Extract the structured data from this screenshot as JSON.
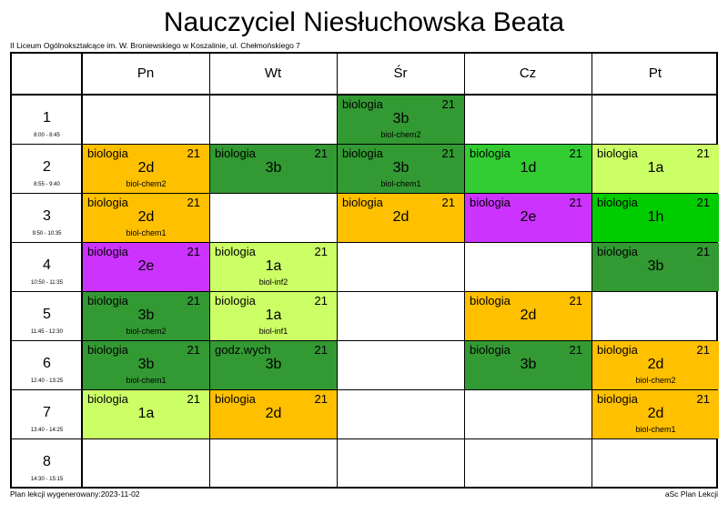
{
  "title": "Nauczyciel Niesłuchowska Beata",
  "school": "II Liceum Ogólnokształcące im. W. Broniewskiego w Koszalinie, ul. Chełmońskiego 7",
  "footer_left": "Plan lekcji wygenerowany:2023-11-02",
  "footer_right": "aSc Plan Lekcji",
  "days": [
    "Pn",
    "Wt",
    "Śr",
    "Cz",
    "Pt"
  ],
  "periods": [
    {
      "num": "1",
      "time": "8:00 - 8:45"
    },
    {
      "num": "2",
      "time": "8:55 - 9:40"
    },
    {
      "num": "3",
      "time": "9:50 - 10:35"
    },
    {
      "num": "4",
      "time": "10:50 - 11:35"
    },
    {
      "num": "5",
      "time": "11:45 - 12:30"
    },
    {
      "num": "6",
      "time": "12:40 - 13:25"
    },
    {
      "num": "7",
      "time": "13:40 - 14:25"
    },
    {
      "num": "8",
      "time": "14:30 - 15:15"
    }
  ],
  "colors": {
    "orange": "#ffc000",
    "dark_green": "#339933",
    "light_green": "#ccff66",
    "medium_green": "#33cc33",
    "bright_green": "#00cc00",
    "purple": "#cc33ff"
  },
  "lessons": [
    {
      "day": 2,
      "period": 0,
      "subject": "biologia",
      "room": "21",
      "class": "3b",
      "group": "biol-chem2",
      "color": "dark_green"
    },
    {
      "day": 0,
      "period": 1,
      "subject": "biologia",
      "room": "21",
      "class": "2d",
      "group": "biol-chem2",
      "color": "orange"
    },
    {
      "day": 1,
      "period": 1,
      "subject": "biologia",
      "room": "21",
      "class": "3b",
      "group": "",
      "color": "dark_green"
    },
    {
      "day": 2,
      "period": 1,
      "subject": "biologia",
      "room": "21",
      "class": "3b",
      "group": "biol-chem1",
      "color": "dark_green"
    },
    {
      "day": 3,
      "period": 1,
      "subject": "biologia",
      "room": "21",
      "class": "1d",
      "group": "",
      "color": "medium_green"
    },
    {
      "day": 4,
      "period": 1,
      "subject": "biologia",
      "room": "21",
      "class": "1a",
      "group": "",
      "color": "light_green"
    },
    {
      "day": 0,
      "period": 2,
      "subject": "biologia",
      "room": "21",
      "class": "2d",
      "group": "biol-chem1",
      "color": "orange"
    },
    {
      "day": 2,
      "period": 2,
      "subject": "biologia",
      "room": "21",
      "class": "2d",
      "group": "",
      "color": "orange"
    },
    {
      "day": 3,
      "period": 2,
      "subject": "biologia",
      "room": "21",
      "class": "2e",
      "group": "",
      "color": "purple"
    },
    {
      "day": 4,
      "period": 2,
      "subject": "biologia",
      "room": "21",
      "class": "1h",
      "group": "",
      "color": "bright_green"
    },
    {
      "day": 0,
      "period": 3,
      "subject": "biologia",
      "room": "21",
      "class": "2e",
      "group": "",
      "color": "purple"
    },
    {
      "day": 1,
      "period": 3,
      "subject": "biologia",
      "room": "21",
      "class": "1a",
      "group": "biol-inf2",
      "color": "light_green"
    },
    {
      "day": 4,
      "period": 3,
      "subject": "biologia",
      "room": "21",
      "class": "3b",
      "group": "",
      "color": "dark_green"
    },
    {
      "day": 0,
      "period": 4,
      "subject": "biologia",
      "room": "21",
      "class": "3b",
      "group": "biol-chem2",
      "color": "dark_green"
    },
    {
      "day": 1,
      "period": 4,
      "subject": "biologia",
      "room": "21",
      "class": "1a",
      "group": "biol-inf1",
      "color": "light_green"
    },
    {
      "day": 3,
      "period": 4,
      "subject": "biologia",
      "room": "21",
      "class": "2d",
      "group": "",
      "color": "orange"
    },
    {
      "day": 0,
      "period": 5,
      "subject": "biologia",
      "room": "21",
      "class": "3b",
      "group": "biol-chem1",
      "color": "dark_green"
    },
    {
      "day": 1,
      "period": 5,
      "subject": "godz.wych",
      "room": "21",
      "class": "3b",
      "group": "",
      "color": "dark_green"
    },
    {
      "day": 3,
      "period": 5,
      "subject": "biologia",
      "room": "21",
      "class": "3b",
      "group": "",
      "color": "dark_green"
    },
    {
      "day": 4,
      "period": 5,
      "subject": "biologia",
      "room": "21",
      "class": "2d",
      "group": "biol-chem2",
      "color": "orange"
    },
    {
      "day": 0,
      "period": 6,
      "subject": "biologia",
      "room": "21",
      "class": "1a",
      "group": "",
      "color": "light_green"
    },
    {
      "day": 1,
      "period": 6,
      "subject": "biologia",
      "room": "21",
      "class": "2d",
      "group": "",
      "color": "orange"
    },
    {
      "day": 4,
      "period": 6,
      "subject": "biologia",
      "room": "21",
      "class": "2d",
      "group": "biol-chem1",
      "color": "orange"
    }
  ]
}
